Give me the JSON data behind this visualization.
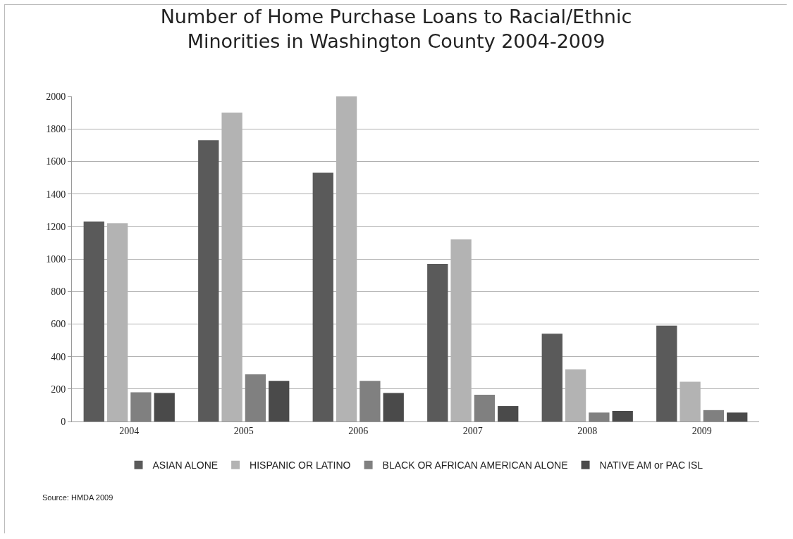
{
  "chart_data": {
    "type": "bar",
    "title": "Number of Home Purchase Loans to Racial/Ethnic\nMinorities in Washington County 2004-2009",
    "categories": [
      "2004",
      "2005",
      "2006",
      "2007",
      "2008",
      "2009"
    ],
    "series": [
      {
        "name": "ASIAN ALONE",
        "color": "#5a5a5a",
        "values": [
          1230,
          1730,
          1530,
          970,
          540,
          590
        ]
      },
      {
        "name": "HISPANIC OR LATINO",
        "color": "#b3b3b3",
        "values": [
          1220,
          1900,
          2000,
          1120,
          320,
          245
        ]
      },
      {
        "name": "BLACK OR AFRICAN AMERICAN ALONE",
        "color": "#808080",
        "values": [
          180,
          290,
          250,
          165,
          55,
          70
        ]
      },
      {
        "name": "NATIVE AM or PAC ISL",
        "color": "#4a4a4a",
        "values": [
          175,
          250,
          175,
          95,
          65,
          55
        ]
      }
    ],
    "ylim": [
      0,
      2000
    ],
    "yticks": [
      0,
      200,
      400,
      600,
      800,
      1000,
      1200,
      1400,
      1600,
      1800,
      2000
    ],
    "grid": "y",
    "legend": "bottom",
    "annotations": [
      "Source: HMDA 2009"
    ]
  }
}
